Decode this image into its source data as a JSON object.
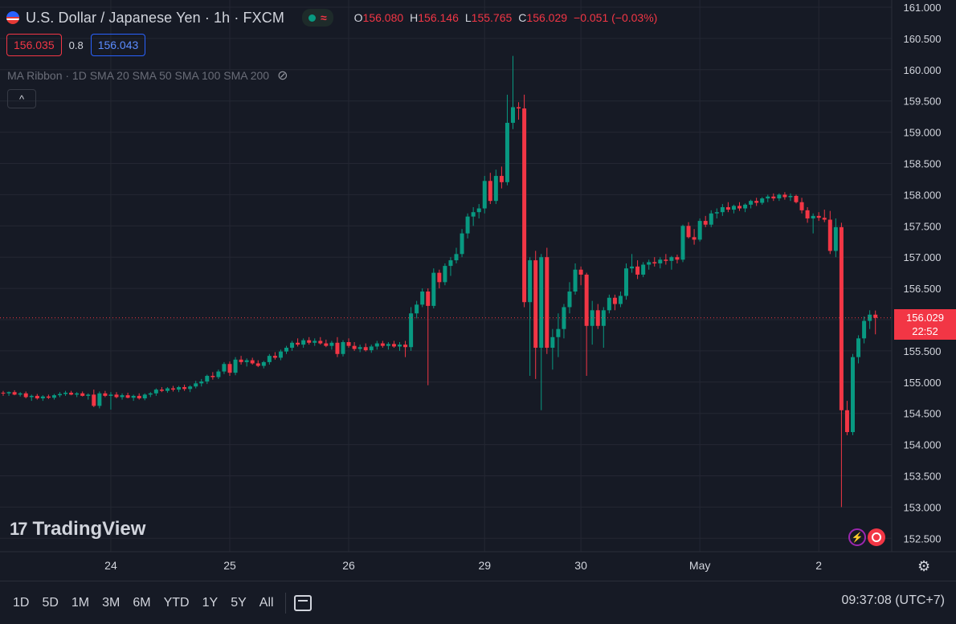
{
  "header": {
    "title": "U.S. Dollar / Japanese Yen · 1h · FXCM",
    "status_icon": "market-open-dot",
    "wave_icon": "≈",
    "ohlc": [
      {
        "key": "O",
        "value": "156.080"
      },
      {
        "key": "H",
        "value": "156.146"
      },
      {
        "key": "L",
        "value": "155.765"
      },
      {
        "key": "C",
        "value": "156.029"
      },
      {
        "key": "",
        "value": "−0.051 (−0.03%)"
      }
    ]
  },
  "trade": {
    "sell_price": "156.035",
    "spread": "0.8",
    "buy_price": "156.043"
  },
  "indicator": {
    "label": "MA Ribbon · 1D SMA 20 SMA 50 SMA 100 SMA 200"
  },
  "collapse_glyph": "^",
  "logo": {
    "mark": "17",
    "text": "TradingView"
  },
  "last_price": {
    "value": "156.029",
    "countdown": "22:52"
  },
  "ranges": [
    "1D",
    "5D",
    "1M",
    "3M",
    "6M",
    "YTD",
    "1Y",
    "5Y",
    "All"
  ],
  "clock": "09:37:08 (UTC+7)",
  "colors": {
    "up": "#089981",
    "down": "#f23645",
    "grid": "#242733",
    "background": "#161a25"
  },
  "chart_data": {
    "type": "candlestick",
    "y_ticks": [
      "161.000",
      "160.500",
      "160.000",
      "159.500",
      "159.000",
      "158.500",
      "158.000",
      "157.500",
      "157.000",
      "156.500",
      "156.000",
      "155.500",
      "155.000",
      "154.500",
      "154.000",
      "153.500",
      "153.000",
      "152.500"
    ],
    "ylim": [
      152.3,
      161.1
    ],
    "x_ticks": [
      {
        "label": "24",
        "index": 19
      },
      {
        "label": "25",
        "index": 40
      },
      {
        "label": "26",
        "index": 61
      },
      {
        "label": "29",
        "index": 85
      },
      {
        "label": "30",
        "index": 102
      },
      {
        "label": "May",
        "index": 123
      },
      {
        "label": "2",
        "index": 144
      }
    ],
    "last_price": 156.029,
    "candles": [
      [
        154.83,
        154.86,
        154.78,
        154.82
      ],
      [
        154.82,
        154.85,
        154.78,
        154.84
      ],
      [
        154.84,
        154.87,
        154.79,
        154.8
      ],
      [
        154.8,
        154.84,
        154.77,
        154.82
      ],
      [
        154.82,
        154.85,
        154.74,
        154.76
      ],
      [
        154.76,
        154.8,
        154.7,
        154.78
      ],
      [
        154.78,
        154.81,
        154.72,
        154.74
      ],
      [
        154.74,
        154.79,
        154.7,
        154.77
      ],
      [
        154.77,
        154.8,
        154.73,
        154.75
      ],
      [
        154.75,
        154.81,
        154.72,
        154.79
      ],
      [
        154.79,
        154.84,
        154.76,
        154.81
      ],
      [
        154.81,
        154.86,
        154.78,
        154.83
      ],
      [
        154.83,
        154.86,
        154.79,
        154.8
      ],
      [
        154.8,
        154.84,
        154.76,
        154.82
      ],
      [
        154.82,
        154.85,
        154.77,
        154.78
      ],
      [
        154.78,
        154.82,
        154.72,
        154.8
      ],
      [
        154.8,
        154.88,
        154.6,
        154.62
      ],
      [
        154.62,
        154.85,
        154.58,
        154.82
      ],
      [
        154.82,
        154.86,
        154.76,
        154.78
      ],
      [
        154.78,
        154.84,
        154.56,
        154.8
      ],
      [
        154.8,
        154.84,
        154.74,
        154.76
      ],
      [
        154.76,
        154.82,
        154.72,
        154.79
      ],
      [
        154.79,
        154.83,
        154.74,
        154.75
      ],
      [
        154.75,
        154.8,
        154.7,
        154.78
      ],
      [
        154.78,
        154.82,
        154.72,
        154.74
      ],
      [
        154.74,
        154.82,
        154.71,
        154.8
      ],
      [
        154.8,
        154.84,
        154.76,
        154.82
      ],
      [
        154.82,
        154.9,
        154.78,
        154.88
      ],
      [
        154.88,
        154.92,
        154.84,
        154.86
      ],
      [
        154.86,
        154.92,
        154.83,
        154.9
      ],
      [
        154.9,
        154.94,
        154.85,
        154.88
      ],
      [
        154.88,
        154.94,
        154.84,
        154.92
      ],
      [
        154.92,
        154.96,
        154.86,
        154.89
      ],
      [
        154.89,
        154.95,
        154.84,
        154.93
      ],
      [
        154.93,
        155.02,
        154.9,
        154.98
      ],
      [
        154.98,
        155.05,
        154.93,
        155.01
      ],
      [
        155.01,
        155.12,
        154.97,
        155.1
      ],
      [
        155.1,
        155.16,
        155.04,
        155.08
      ],
      [
        155.08,
        155.2,
        155.05,
        155.17
      ],
      [
        155.17,
        155.32,
        155.13,
        155.29
      ],
      [
        155.29,
        155.33,
        155.1,
        155.15
      ],
      [
        155.15,
        155.4,
        155.11,
        155.36
      ],
      [
        155.36,
        155.42,
        155.28,
        155.32
      ],
      [
        155.32,
        155.38,
        155.25,
        155.35
      ],
      [
        155.35,
        155.39,
        155.28,
        155.3
      ],
      [
        155.3,
        155.35,
        155.24,
        155.26
      ],
      [
        155.26,
        155.34,
        155.22,
        155.32
      ],
      [
        155.32,
        155.45,
        155.28,
        155.42
      ],
      [
        155.42,
        155.48,
        155.36,
        155.39
      ],
      [
        155.39,
        155.52,
        155.35,
        155.49
      ],
      [
        155.49,
        155.58,
        155.45,
        155.55
      ],
      [
        155.55,
        155.66,
        155.5,
        155.63
      ],
      [
        155.63,
        155.7,
        155.57,
        155.6
      ],
      [
        155.6,
        155.7,
        155.55,
        155.67
      ],
      [
        155.67,
        155.72,
        155.6,
        155.63
      ],
      [
        155.63,
        155.7,
        155.58,
        155.66
      ],
      [
        155.66,
        155.72,
        155.6,
        155.62
      ],
      [
        155.62,
        155.68,
        155.56,
        155.58
      ],
      [
        155.58,
        155.66,
        155.52,
        155.63
      ],
      [
        155.63,
        155.72,
        155.4,
        155.45
      ],
      [
        155.45,
        155.67,
        155.41,
        155.64
      ],
      [
        155.64,
        155.7,
        155.55,
        155.58
      ],
      [
        155.58,
        155.64,
        155.5,
        155.53
      ],
      [
        155.53,
        155.6,
        155.48,
        155.56
      ],
      [
        155.56,
        155.62,
        155.49,
        155.51
      ],
      [
        155.51,
        155.6,
        155.47,
        155.57
      ],
      [
        155.57,
        155.66,
        155.52,
        155.62
      ],
      [
        155.62,
        155.66,
        155.55,
        155.58
      ],
      [
        155.58,
        155.64,
        155.52,
        155.61
      ],
      [
        155.61,
        155.66,
        155.55,
        155.57
      ],
      [
        155.57,
        155.64,
        155.5,
        155.6
      ],
      [
        155.6,
        155.66,
        155.4,
        155.56
      ],
      [
        155.56,
        156.2,
        155.5,
        156.1
      ],
      [
        156.1,
        156.3,
        156.02,
        156.24
      ],
      [
        156.24,
        156.5,
        156.2,
        156.45
      ],
      [
        156.45,
        156.5,
        154.95,
        156.22
      ],
      [
        156.22,
        156.82,
        156.18,
        156.75
      ],
      [
        156.75,
        156.8,
        156.5,
        156.6
      ],
      [
        156.6,
        156.9,
        156.55,
        156.86
      ],
      [
        156.86,
        157.0,
        156.7,
        156.95
      ],
      [
        156.95,
        157.15,
        156.9,
        157.05
      ],
      [
        157.05,
        157.45,
        157.0,
        157.38
      ],
      [
        157.38,
        157.7,
        157.3,
        157.65
      ],
      [
        157.65,
        157.8,
        157.5,
        157.72
      ],
      [
        157.72,
        157.85,
        157.62,
        157.78
      ],
      [
        157.78,
        158.3,
        157.7,
        158.22
      ],
      [
        158.22,
        158.35,
        157.85,
        157.9
      ],
      [
        157.9,
        158.4,
        157.85,
        158.3
      ],
      [
        158.3,
        158.45,
        158.1,
        158.2
      ],
      [
        158.2,
        159.6,
        158.15,
        159.15
      ],
      [
        159.15,
        160.22,
        159.05,
        159.4
      ],
      [
        159.4,
        159.48,
        159.2,
        159.38
      ],
      [
        159.38,
        159.6,
        156.2,
        156.28
      ],
      [
        156.28,
        157.0,
        155.1,
        156.95
      ],
      [
        156.95,
        157.1,
        155.05,
        155.55
      ],
      [
        155.55,
        157.05,
        154.55,
        157.0
      ],
      [
        157.0,
        157.15,
        155.45,
        155.55
      ],
      [
        155.55,
        155.85,
        155.2,
        155.72
      ],
      [
        155.72,
        156.1,
        155.4,
        155.85
      ],
      [
        155.85,
        156.25,
        155.7,
        156.2
      ],
      [
        156.2,
        156.6,
        156.1,
        156.45
      ],
      [
        156.45,
        156.9,
        156.4,
        156.8
      ],
      [
        156.8,
        156.85,
        156.55,
        156.72
      ],
      [
        156.72,
        156.75,
        155.1,
        155.9
      ],
      [
        155.9,
        156.3,
        155.6,
        156.15
      ],
      [
        156.15,
        156.25,
        155.85,
        155.9
      ],
      [
        155.9,
        156.2,
        155.55,
        156.15
      ],
      [
        156.15,
        156.4,
        156.1,
        156.35
      ],
      [
        156.35,
        156.4,
        156.15,
        156.25
      ],
      [
        156.25,
        156.45,
        156.2,
        156.38
      ],
      [
        156.38,
        156.9,
        156.32,
        156.82
      ],
      [
        156.82,
        157.05,
        156.75,
        156.85
      ],
      [
        156.85,
        156.95,
        156.65,
        156.72
      ],
      [
        156.72,
        156.92,
        156.68,
        156.88
      ],
      [
        156.88,
        156.96,
        156.8,
        156.92
      ],
      [
        156.92,
        157.0,
        156.85,
        156.9
      ],
      [
        156.9,
        157.0,
        156.82,
        156.96
      ],
      [
        156.96,
        157.05,
        156.88,
        156.94
      ],
      [
        156.94,
        157.02,
        156.8,
        157.0
      ],
      [
        157.0,
        157.04,
        156.9,
        156.96
      ],
      [
        156.96,
        157.52,
        156.92,
        157.5
      ],
      [
        157.5,
        157.56,
        157.3,
        157.32
      ],
      [
        157.32,
        157.45,
        157.2,
        157.28
      ],
      [
        157.28,
        157.62,
        157.25,
        157.58
      ],
      [
        157.58,
        157.66,
        157.48,
        157.52
      ],
      [
        157.52,
        157.75,
        157.48,
        157.7
      ],
      [
        157.7,
        157.78,
        157.62,
        157.72
      ],
      [
        157.72,
        157.85,
        157.66,
        157.8
      ],
      [
        157.8,
        157.88,
        157.72,
        157.76
      ],
      [
        157.76,
        157.84,
        157.7,
        157.82
      ],
      [
        157.82,
        157.88,
        157.74,
        157.78
      ],
      [
        157.78,
        157.86,
        157.72,
        157.84
      ],
      [
        157.84,
        157.92,
        157.78,
        157.9
      ],
      [
        157.9,
        157.95,
        157.82,
        157.87
      ],
      [
        157.87,
        157.96,
        157.84,
        157.94
      ],
      [
        157.94,
        158.0,
        157.88,
        157.97
      ],
      [
        157.97,
        158.02,
        157.9,
        157.94
      ],
      [
        157.94,
        158.02,
        157.9,
        158.0
      ],
      [
        158.0,
        158.04,
        157.92,
        157.96
      ],
      [
        157.96,
        158.02,
        157.9,
        157.98
      ],
      [
        157.98,
        158.0,
        157.86,
        157.88
      ],
      [
        157.88,
        157.95,
        157.7,
        157.75
      ],
      [
        157.75,
        157.8,
        157.55,
        157.62
      ],
      [
        157.62,
        157.7,
        157.38,
        157.66
      ],
      [
        157.66,
        157.72,
        157.58,
        157.63
      ],
      [
        157.63,
        157.76,
        157.56,
        157.6
      ],
      [
        157.6,
        157.74,
        157.05,
        157.1
      ],
      [
        157.1,
        157.62,
        157.0,
        157.48
      ],
      [
        157.48,
        157.55,
        153.0,
        154.55
      ],
      [
        154.55,
        154.7,
        154.15,
        154.2
      ],
      [
        154.2,
        155.45,
        154.15,
        155.4
      ],
      [
        155.4,
        155.75,
        155.3,
        155.7
      ],
      [
        155.7,
        156.05,
        155.62,
        155.98
      ],
      [
        155.98,
        156.15,
        155.85,
        156.08
      ],
      [
        156.08,
        156.146,
        155.765,
        156.029
      ]
    ]
  }
}
